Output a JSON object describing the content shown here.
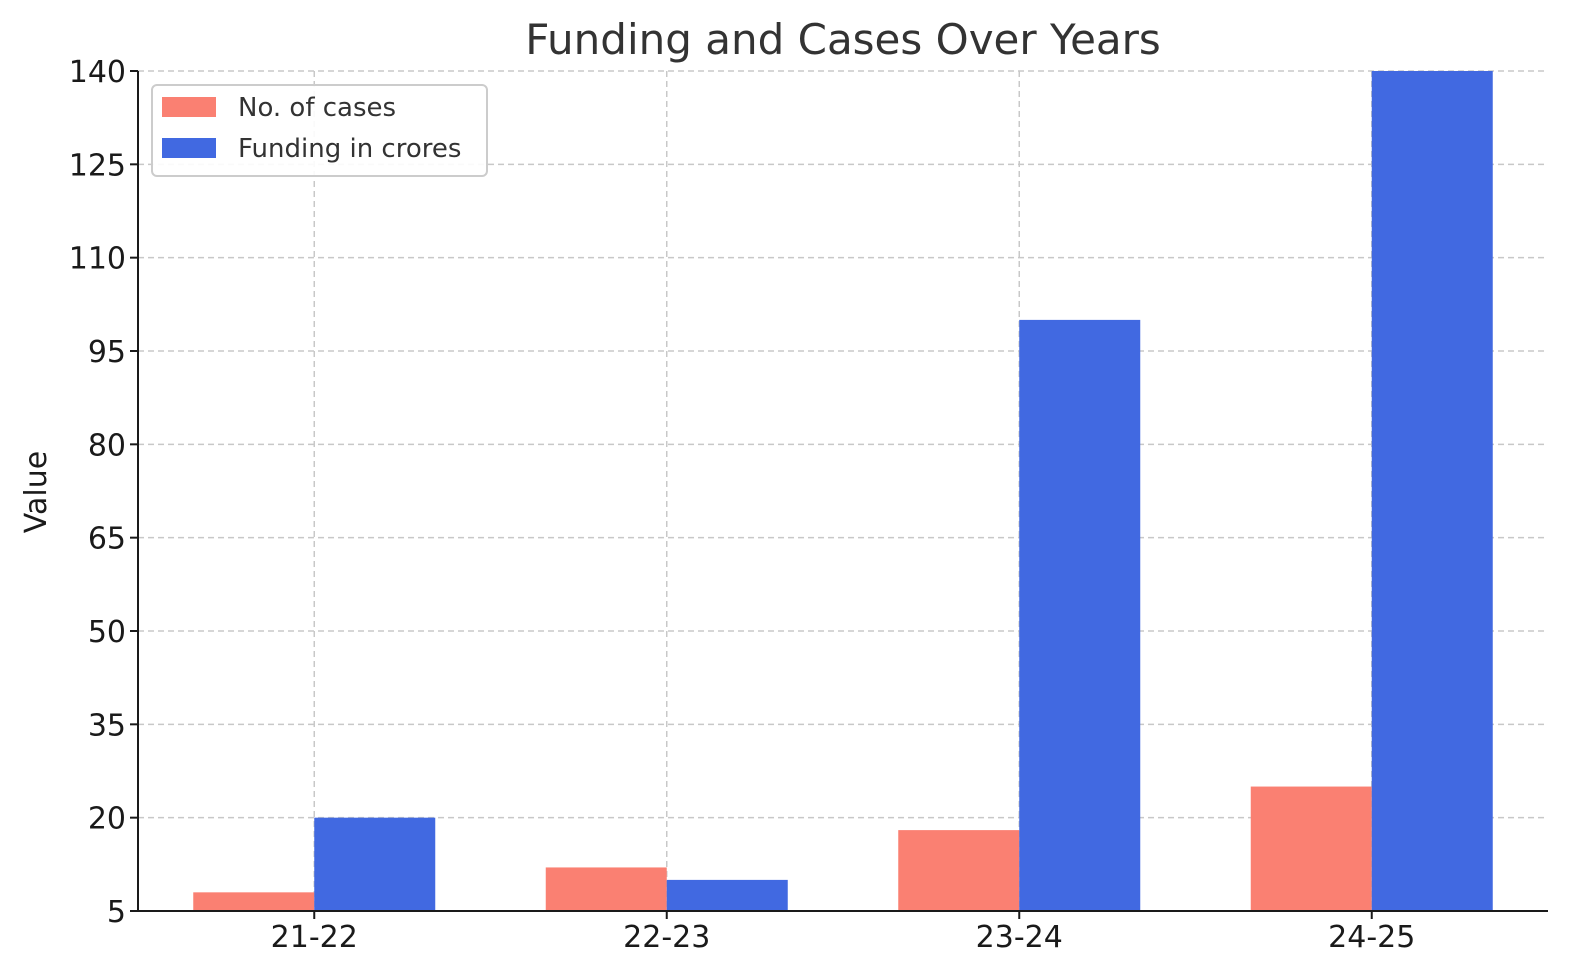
{
  "chart_data": {
    "type": "bar",
    "title": "Funding and Cases Over Years",
    "xlabel": "",
    "ylabel": "Value",
    "categories": [
      "21-22",
      "22-23",
      "23-24",
      "24-25"
    ],
    "series": [
      {
        "name": "No. of cases",
        "values": [
          8,
          12,
          18,
          25
        ],
        "color": "#FA8072"
      },
      {
        "name": "Funding in crores",
        "values": [
          20,
          10,
          100,
          140
        ],
        "color": "#4169E1"
      }
    ],
    "ylim": [
      5,
      140
    ],
    "yticks": [
      5,
      20,
      35,
      50,
      65,
      80,
      95,
      110,
      125,
      140
    ],
    "grid": true,
    "legend_position": "top-left"
  }
}
